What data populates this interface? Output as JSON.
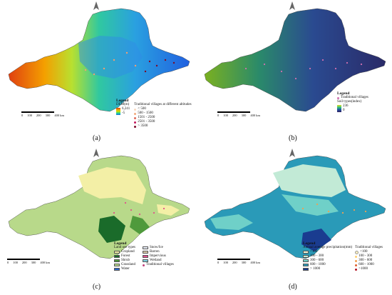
{
  "panels": {
    "a": {
      "caption": "(a)",
      "legend_title": "Legend",
      "dem_label": "DEM(m)",
      "dem_max": "6,241",
      "dem_min": "-5",
      "villages_title": "Traditional villages at different altitudes",
      "classes": [
        "< 500",
        "500 - 1500",
        "1501 - 2500",
        "2501 - 3500",
        "> 3500"
      ]
    },
    "b": {
      "caption": "(b)",
      "legend_title": "Legend",
      "villages": "Traditional villages",
      "soil_title": "Soil types(index)",
      "soil_max": "236",
      "soil_min": "0"
    },
    "c": {
      "caption": "(c)",
      "legend_title": "Legend",
      "landuse_title": "Land use types",
      "left_items": [
        "Cropland",
        "Forest",
        "Shrub",
        "Grassland",
        "Water"
      ],
      "right_items": [
        "Snow/Ice",
        "Barren",
        "Impervious",
        "Wetland",
        "Traditional villages"
      ]
    },
    "d": {
      "caption": "(d)",
      "legend_title": "Legend",
      "precip_title": "Annual average precipitation(mm)",
      "villages_title": "Traditional villages",
      "precip_items": [
        "<100",
        "100 - 300",
        "300 - 600",
        "600 - 1000",
        "> 1000"
      ],
      "village_items": [
        "<100",
        "100 - 300",
        "300 - 600",
        "600 - 1000",
        ">1000"
      ]
    }
  },
  "scale": {
    "ticks": [
      "0",
      "100",
      "200",
      "300",
      "400 km"
    ]
  },
  "colors": {
    "a_villages": [
      "#f7d9c0",
      "#f2a97a",
      "#e06a5a",
      "#c2185b",
      "#7a0c2a"
    ],
    "c_left": [
      "#f3efa6",
      "#1a6b2a",
      "#4f9a3c",
      "#b8d98a",
      "#2a67c8"
    ],
    "c_right": [
      "#e8eef8",
      "#d9c8a8",
      "#e0508a",
      "#7fd0e0",
      "#c0407a"
    ],
    "d_precip": [
      "#f2f8d8",
      "#c2ead6",
      "#6fd0c8",
      "#2a9ab8",
      "#1a3c90"
    ],
    "d_villages": [
      "#fff2c0",
      "#ffd070",
      "#f0a050",
      "#e06030",
      "#b01020"
    ]
  }
}
